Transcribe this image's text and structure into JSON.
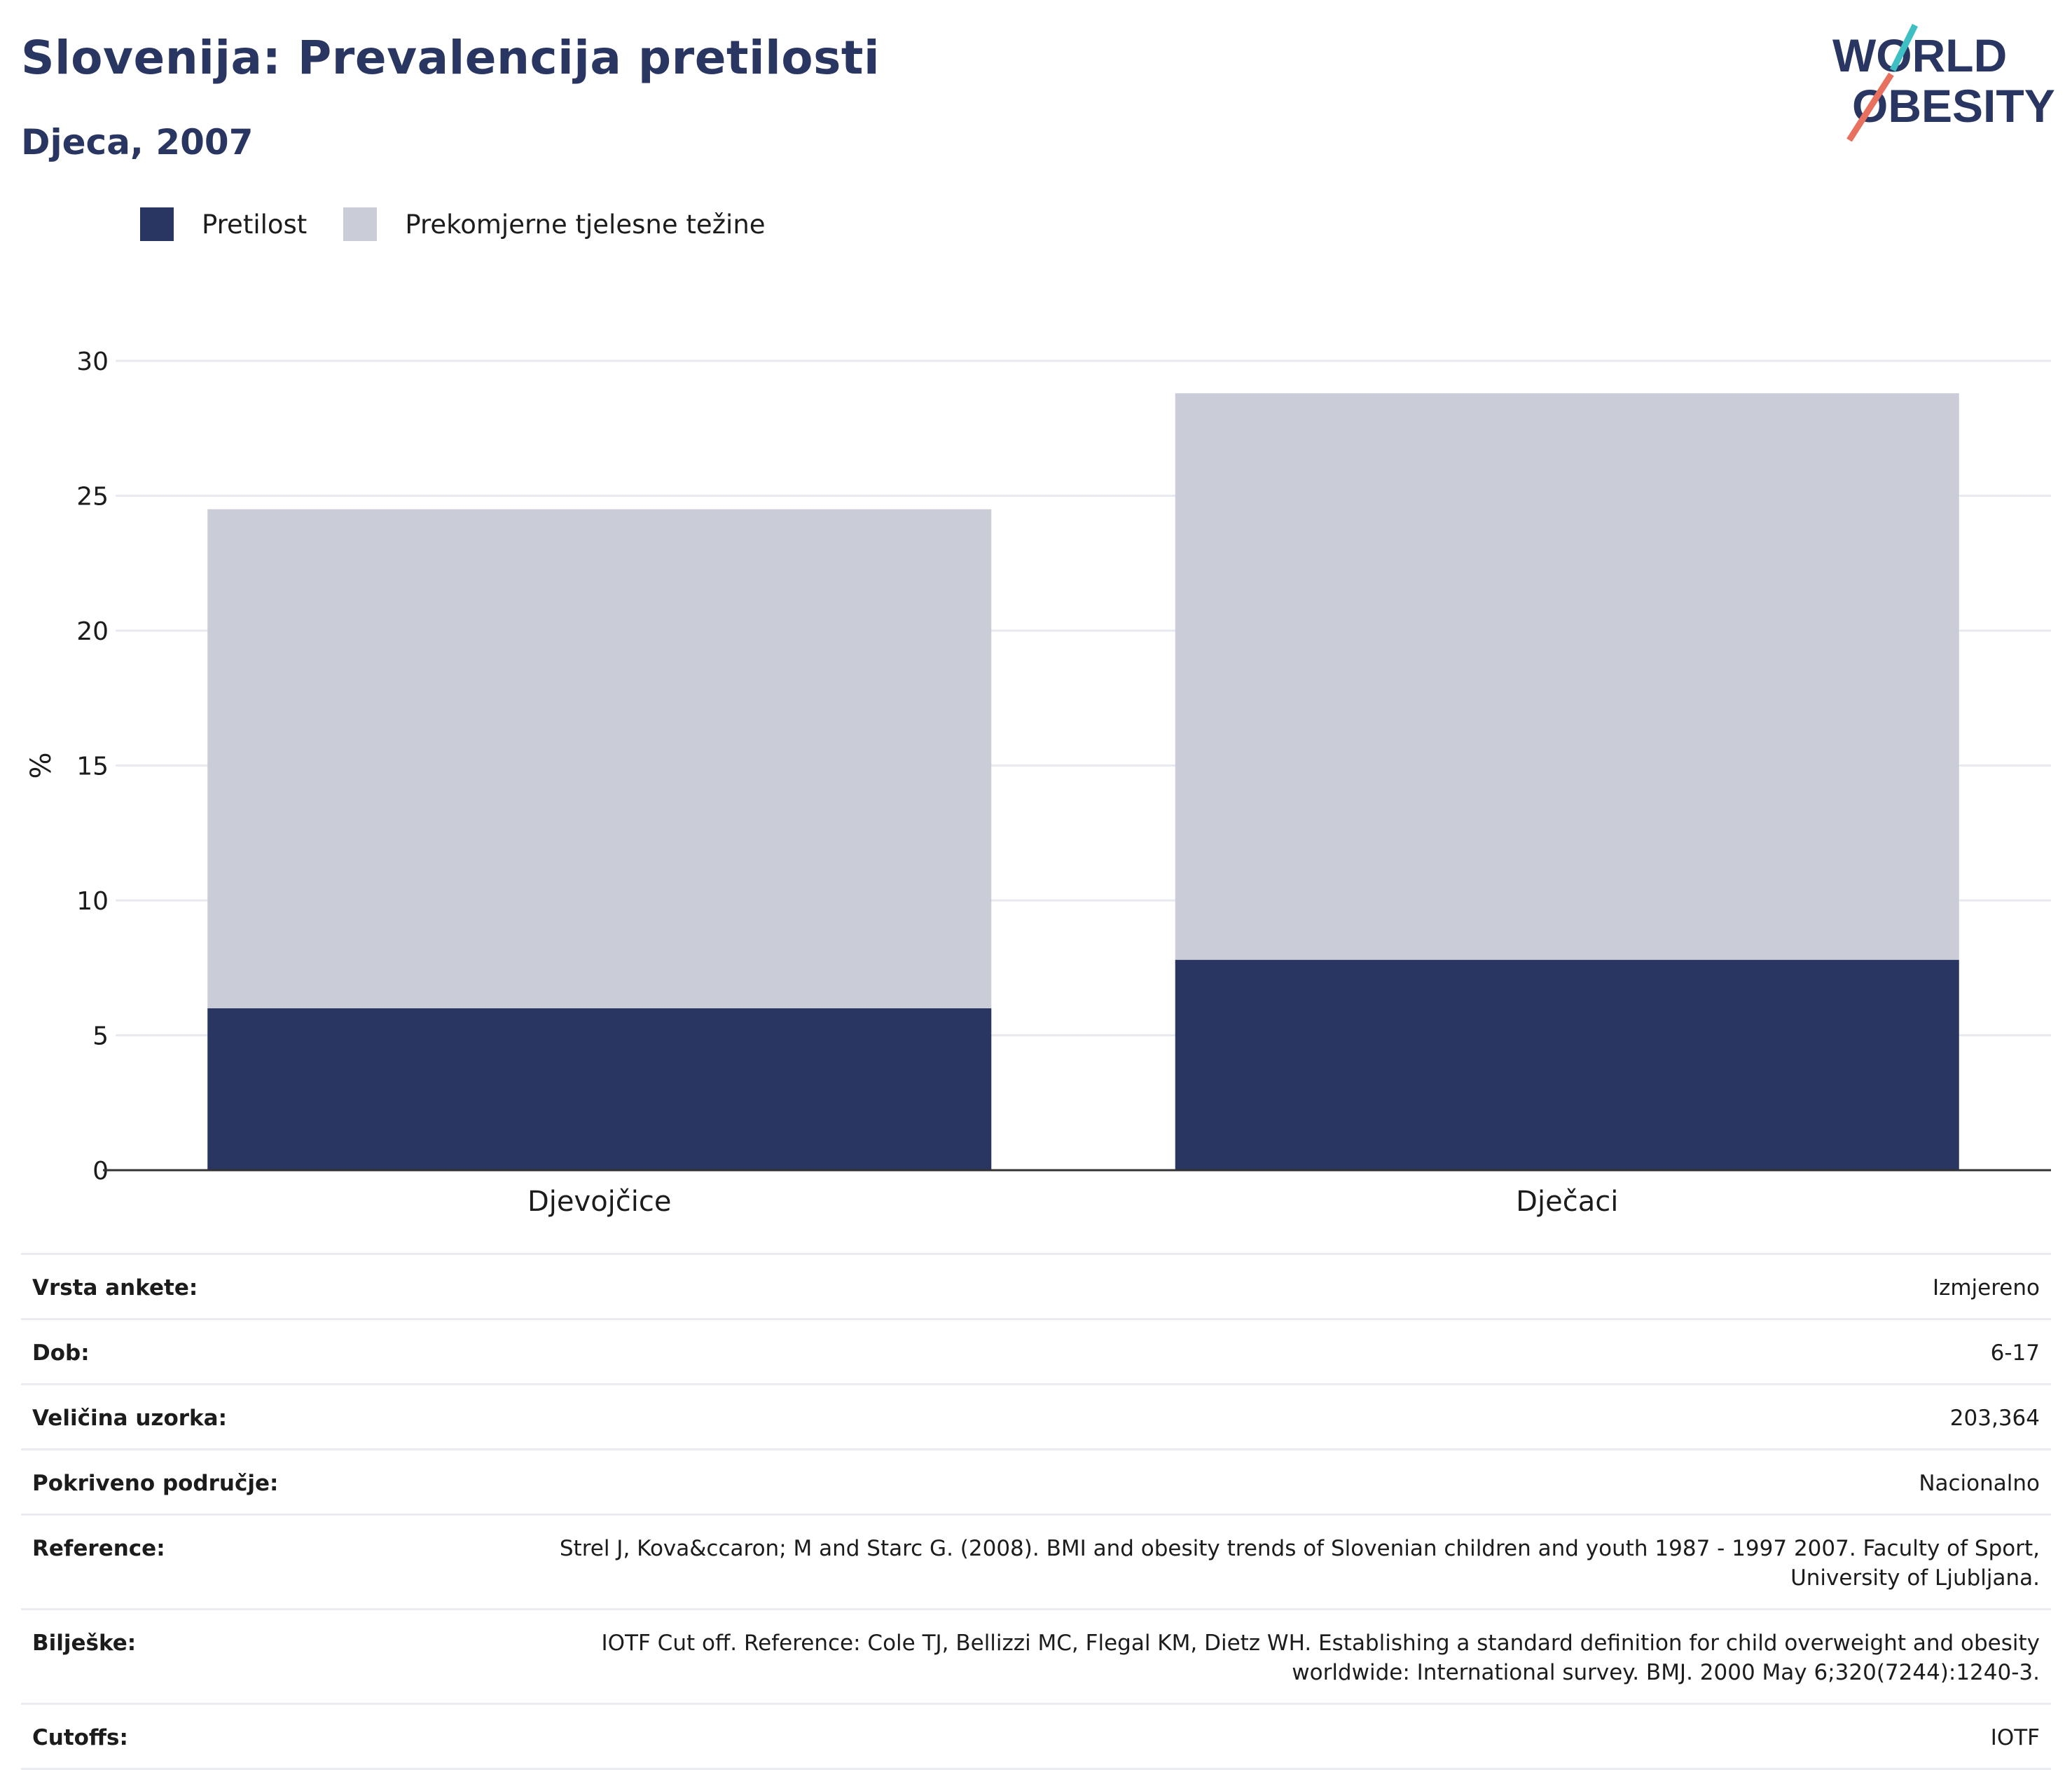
{
  "header": {
    "title": "Slovenija: Prevalencija pretilosti",
    "subtitle": "Djeca, 2007"
  },
  "logo": {
    "line1": "WORLD",
    "line2": "OBESITY",
    "colors": {
      "text": "#2a3662",
      "teal": "#3dbfc3",
      "coral": "#e8705e"
    }
  },
  "colors": {
    "obesity": "#2a3662",
    "overweight": "#cacdd8",
    "grid": "#e8eaf0",
    "axis": "#333333"
  },
  "chart_data": {
    "type": "bar",
    "stacked": true,
    "categories": [
      "Djevojčice",
      "Dječaci"
    ],
    "series": [
      {
        "name": "Pretilost",
        "values": [
          6.0,
          7.8
        ]
      },
      {
        "name": "Prekomjerne tjelesne težine",
        "values": [
          18.5,
          21.0
        ]
      }
    ],
    "ylabel": "%",
    "ylim": [
      0,
      30
    ],
    "yticks": [
      0,
      5,
      10,
      15,
      20,
      25,
      30
    ],
    "grid": true,
    "legend_position": "top-left"
  },
  "details": [
    {
      "label": "Vrsta ankete:",
      "value": "Izmjereno"
    },
    {
      "label": "Dob:",
      "value": "6-17"
    },
    {
      "label": "Veličina uzorka:",
      "value": "203,364"
    },
    {
      "label": "Pokriveno područje:",
      "value": "Nacionalno"
    },
    {
      "label": "Reference:",
      "value": "Strel J, Kova&ccaron; M and Starc G. (2008). BMI and obesity trends of Slovenian children and youth 1987 - 1997 2007. Faculty of Sport, University of Ljubljana."
    },
    {
      "label": "Bilješke:",
      "value": "IOTF Cut off. Reference: Cole TJ, Bellizzi MC, Flegal KM, Dietz WH. Establishing a standard definition for child overweight and obesity worldwide: International survey. BMJ. 2000 May 6;320(7244):1240-3."
    },
    {
      "label": "Cutoffs:",
      "value": "IOTF"
    }
  ]
}
